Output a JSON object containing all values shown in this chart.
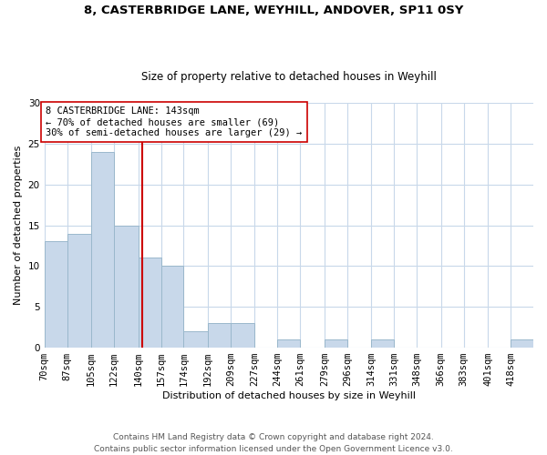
{
  "title": "8, CASTERBRIDGE LANE, WEYHILL, ANDOVER, SP11 0SY",
  "subtitle": "Size of property relative to detached houses in Weyhill",
  "xlabel": "Distribution of detached houses by size in Weyhill",
  "ylabel": "Number of detached properties",
  "bin_labels": [
    "70sqm",
    "87sqm",
    "105sqm",
    "122sqm",
    "140sqm",
    "157sqm",
    "174sqm",
    "192sqm",
    "209sqm",
    "227sqm",
    "244sqm",
    "261sqm",
    "279sqm",
    "296sqm",
    "314sqm",
    "331sqm",
    "348sqm",
    "366sqm",
    "383sqm",
    "401sqm",
    "418sqm"
  ],
  "bin_edges": [
    70,
    87,
    105,
    122,
    140,
    157,
    174,
    192,
    209,
    227,
    244,
    261,
    279,
    296,
    314,
    331,
    348,
    366,
    383,
    401,
    418,
    435
  ],
  "counts": [
    13,
    14,
    24,
    15,
    11,
    10,
    2,
    3,
    3,
    0,
    1,
    0,
    1,
    0,
    1,
    0,
    0,
    0,
    0,
    0,
    1
  ],
  "bar_color": "#c8d8ea",
  "bar_edgecolor": "#9ab8cc",
  "vline_x": 143,
  "vline_color": "#cc0000",
  "annotation_line1": "8 CASTERBRIDGE LANE: 143sqm",
  "annotation_line2": "← 70% of detached houses are smaller (69)",
  "annotation_line3": "30% of semi-detached houses are larger (29) →",
  "annotation_box_edgecolor": "#cc0000",
  "footnote_line1": "Contains HM Land Registry data © Crown copyright and database right 2024.",
  "footnote_line2": "Contains public sector information licensed under the Open Government Licence v3.0.",
  "ylim": [
    0,
    30
  ],
  "yticks": [
    0,
    5,
    10,
    15,
    20,
    25,
    30
  ],
  "background_color": "#ffffff",
  "grid_color": "#c8d8ea",
  "title_fontsize": 9.5,
  "subtitle_fontsize": 8.5,
  "axis_label_fontsize": 8,
  "tick_fontsize": 7.5,
  "annotation_fontsize": 7.5,
  "footnote_fontsize": 6.5
}
